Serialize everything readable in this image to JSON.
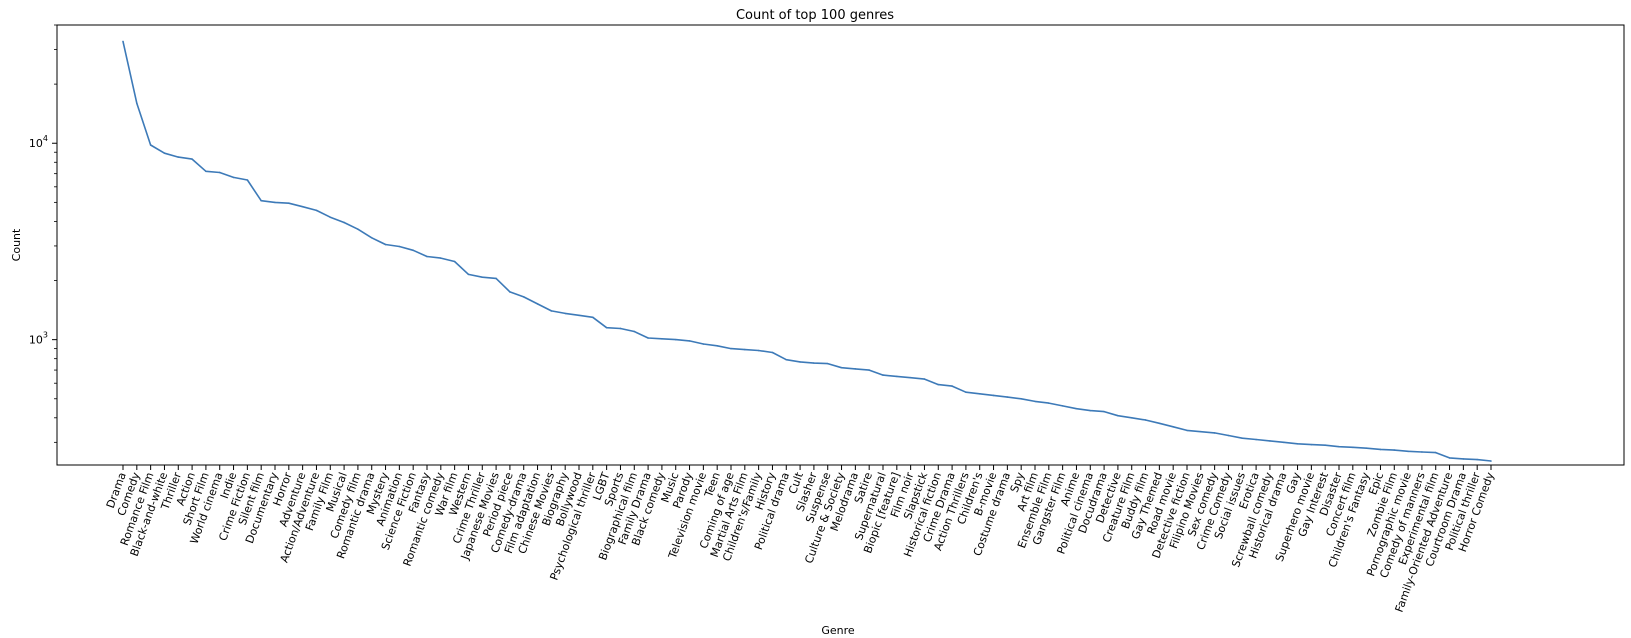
{
  "chart_data": {
    "type": "line",
    "title": "Count of top 100 genres",
    "xlabel": "Genre",
    "ylabel": "Count",
    "yscale": "log",
    "ylim": [
      230,
      40000
    ],
    "y_ticks": [
      {
        "value": 1000,
        "base": "10",
        "exp": "3"
      },
      {
        "value": 10000,
        "base": "10",
        "exp": "4"
      }
    ],
    "grid": false,
    "line_color": "#3d7ab8",
    "categories": [
      "Drama",
      "Comedy",
      "Romance Film",
      "Black-and-white",
      "Thriller",
      "Action",
      "Short Film",
      "World cinema",
      "Indie",
      "Crime Fiction",
      "Silent film",
      "Documentary",
      "Horror",
      "Adventure",
      "Action/Adventure",
      "Family Film",
      "Musical",
      "Comedy film",
      "Romantic drama",
      "Mystery",
      "Animation",
      "Science Fiction",
      "Fantasy",
      "Romantic comedy",
      "War film",
      "Western",
      "Crime Thriller",
      "Japanese Movies",
      "Period piece",
      "Comedy-drama",
      "Film adaptation",
      "Chinese Movies",
      "Biography",
      "Bollywood",
      "Psychological thriller",
      "LGBT",
      "Sports",
      "Biographical film",
      "Family Drama",
      "Black comedy",
      "Music",
      "Parody",
      "Television movie",
      "Teen",
      "Coming of age",
      "Martial Arts Film",
      "Children's/Family",
      "History",
      "Political drama",
      "Cult",
      "Slasher",
      "Suspense",
      "Culture & Society",
      "Melodrama",
      "Satire",
      "Supernatural",
      "Biopic [feature]",
      "Film noir",
      "Slapstick",
      "Historical fiction",
      "Crime Drama",
      "Action Thrillers",
      "Children's",
      "B-movie",
      "Costume drama",
      "Spy",
      "Art film",
      "Ensemble Film",
      "Gangster Film",
      "Anime",
      "Political cinema",
      "Docudrama",
      "Detective",
      "Creature Film",
      "Buddy film",
      "Gay Themed",
      "Road movie",
      "Detective fiction",
      "Filipino Movies",
      "Sex comedy",
      "Crime Comedy",
      "Social issues",
      "Erotica",
      "Screwball comedy",
      "Historical drama",
      "Gay",
      "Superhero movie",
      "Gay Interest",
      "Disaster",
      "Concert film",
      "Children's Fantasy",
      "Epic",
      "Zombie Film",
      "Pornographic movie",
      "Comedy of manners",
      "Experimental film",
      "Family-Oriented Adventure",
      "Courtroom Drama",
      "Political thriller",
      "Horror Comedy"
    ],
    "values": [
      33000,
      16000,
      9800,
      8900,
      8500,
      8300,
      7200,
      7100,
      6700,
      6500,
      5100,
      5000,
      4950,
      4750,
      4550,
      4200,
      3950,
      3650,
      3300,
      3050,
      2980,
      2850,
      2650,
      2600,
      2500,
      2150,
      2080,
      2050,
      1750,
      1650,
      1520,
      1400,
      1360,
      1330,
      1300,
      1150,
      1140,
      1100,
      1020,
      1010,
      1000,
      985,
      950,
      930,
      900,
      890,
      880,
      860,
      790,
      770,
      760,
      755,
      720,
      710,
      700,
      660,
      650,
      640,
      630,
      590,
      580,
      540,
      530,
      520,
      510,
      500,
      485,
      475,
      460,
      445,
      435,
      430,
      410,
      400,
      390,
      375,
      360,
      345,
      340,
      335,
      325,
      315,
      310,
      305,
      300,
      295,
      292,
      290,
      285,
      283,
      280,
      276,
      274,
      270,
      268,
      266,
      250,
      247,
      245,
      241
    ]
  }
}
